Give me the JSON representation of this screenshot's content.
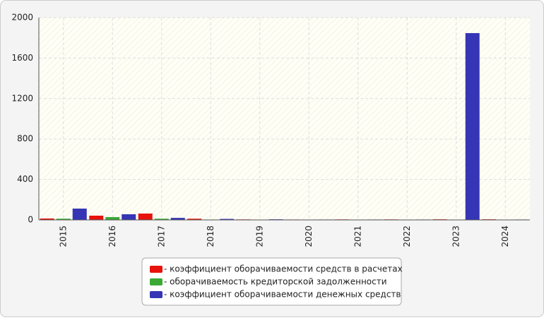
{
  "chart_data": {
    "type": "bar",
    "categories": [
      "2015",
      "2016",
      "2017",
      "2018",
      "2019",
      "2020",
      "2021",
      "2022",
      "2023",
      "2024"
    ],
    "series": [
      {
        "name": "- коэффициент оборачиваемости средств в расчетах",
        "color": "#e8120c",
        "values": [
          14,
          42,
          63,
          12,
          5,
          4,
          5,
          5,
          6,
          6
        ]
      },
      {
        "name": "- оборачиваемость кредиторской задолженности",
        "color": "#3aaa35",
        "values": [
          12,
          28,
          12,
          4,
          3,
          3,
          3,
          3,
          3,
          3
        ]
      },
      {
        "name": "- коэффициент оборачиваемости денежных средств",
        "color": "#3535b5",
        "values": [
          112,
          56,
          20,
          10,
          6,
          4,
          4,
          4,
          1847,
          4
        ]
      }
    ],
    "ylim": [
      0,
      2000
    ],
    "yticks": [
      0,
      400,
      800,
      1200,
      1600,
      2000
    ],
    "grid": true,
    "legend": "bottom"
  }
}
